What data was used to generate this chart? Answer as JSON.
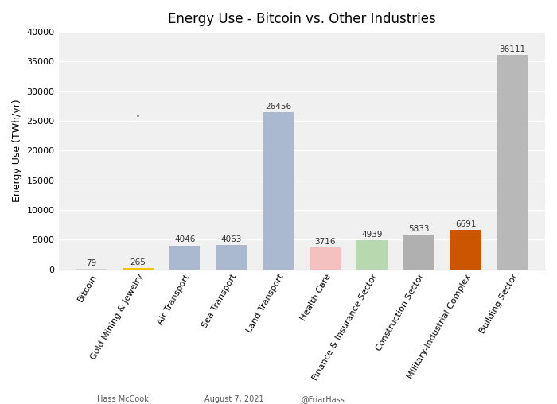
{
  "title": "Energy Use - Bitcoin vs. Other Industries",
  "ylabel": "Energy Use (TWh/yr)",
  "categories": [
    "Bitcoin",
    "Gold Mining & Jewelry",
    "Air Transport",
    "Sea Transport",
    "Land Transport",
    "Health Care",
    "Finance & Insurance Sector",
    "Construction Sector",
    "Military-Industrial Complex",
    "Building Sector"
  ],
  "values": [
    79,
    265,
    4046,
    4063,
    26456,
    3716,
    4939,
    5833,
    6691,
    36111
  ],
  "bar_colors": [
    "#d3d3d3",
    "#f5c400",
    "#aab8d0",
    "#aab8d0",
    "#aab8d0",
    "#f5c0c0",
    "#b8d8b0",
    "#b0b0b0",
    "#cc5500",
    "#b8b8b8"
  ],
  "ylim": [
    0,
    40000
  ],
  "yticks": [
    0,
    5000,
    10000,
    15000,
    20000,
    25000,
    30000,
    35000,
    40000
  ],
  "footnote_left": "Hass McCook",
  "footnote_mid": "August 7, 2021",
  "footnote_right": "@FriarHass",
  "background_color": "#ffffff",
  "plot_bg_color": "#f0f0f0",
  "grid_color": "#ffffff",
  "title_fontsize": 12,
  "label_fontsize": 9,
  "tick_fontsize": 8,
  "annotation_fontsize": 7.5,
  "footnote_fontsize": 7,
  "bar_width": 0.65
}
